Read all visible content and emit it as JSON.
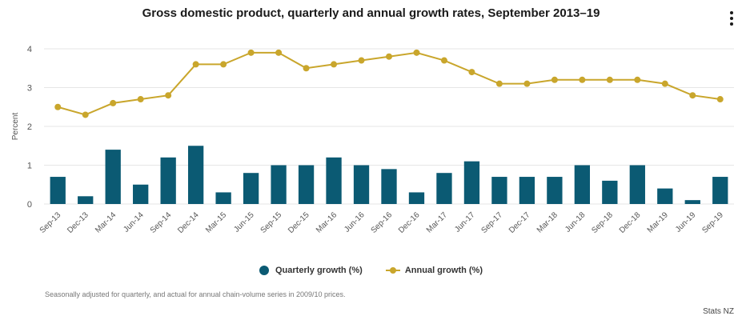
{
  "chart_data": {
    "type": "bar",
    "title": "Gross domestic product, quarterly and annual growth rates, September 2013–19",
    "xlabel": "",
    "ylabel": "Percent",
    "ylim": [
      0,
      4
    ],
    "yticks": [
      0,
      1,
      2,
      3,
      4
    ],
    "grid": true,
    "categories": [
      "Sep-13",
      "Dec-13",
      "Mar-14",
      "Jun-14",
      "Sep-14",
      "Dec-14",
      "Mar-15",
      "Jun-15",
      "Sep-15",
      "Dec-15",
      "Mar-16",
      "Jun-16",
      "Sep-16",
      "Dec-16",
      "Mar-17",
      "Jun-17",
      "Sep-17",
      "Dec-17",
      "Mar-18",
      "Jun-18",
      "Sep-18",
      "Dec-18",
      "Mar-19",
      "Jun-19",
      "Sep-19"
    ],
    "series": [
      {
        "name": "Quarterly growth (%)",
        "type": "bar",
        "color": "#0b5a73",
        "values": [
          0.7,
          0.2,
          1.4,
          0.5,
          1.2,
          1.5,
          0.3,
          0.8,
          1.0,
          1.0,
          1.2,
          1.0,
          0.9,
          0.3,
          0.8,
          1.1,
          0.7,
          0.7,
          0.7,
          1.0,
          0.6,
          1.0,
          0.4,
          0.1,
          0.7
        ]
      },
      {
        "name": "Annual growth (%)",
        "type": "line",
        "color": "#c9a62c",
        "values": [
          2.5,
          2.3,
          2.6,
          2.7,
          2.8,
          3.6,
          3.6,
          3.9,
          3.9,
          3.5,
          3.6,
          3.7,
          3.8,
          3.9,
          3.7,
          3.4,
          3.1,
          3.1,
          3.2,
          3.2,
          3.2,
          3.2,
          3.1,
          2.8,
          2.7
        ]
      }
    ],
    "legend_position": "bottom-center"
  },
  "footnote": "Seasonally adjusted for quarterly, and actual for annual chain-volume series in 2009/10 prices.",
  "credit": "Stats NZ",
  "colors": {
    "grid": "#e6e6e6",
    "axis_text": "#555555",
    "bar": "#0b5a73",
    "line": "#c9a62c"
  },
  "menu_icon": "more-vertical-icon"
}
